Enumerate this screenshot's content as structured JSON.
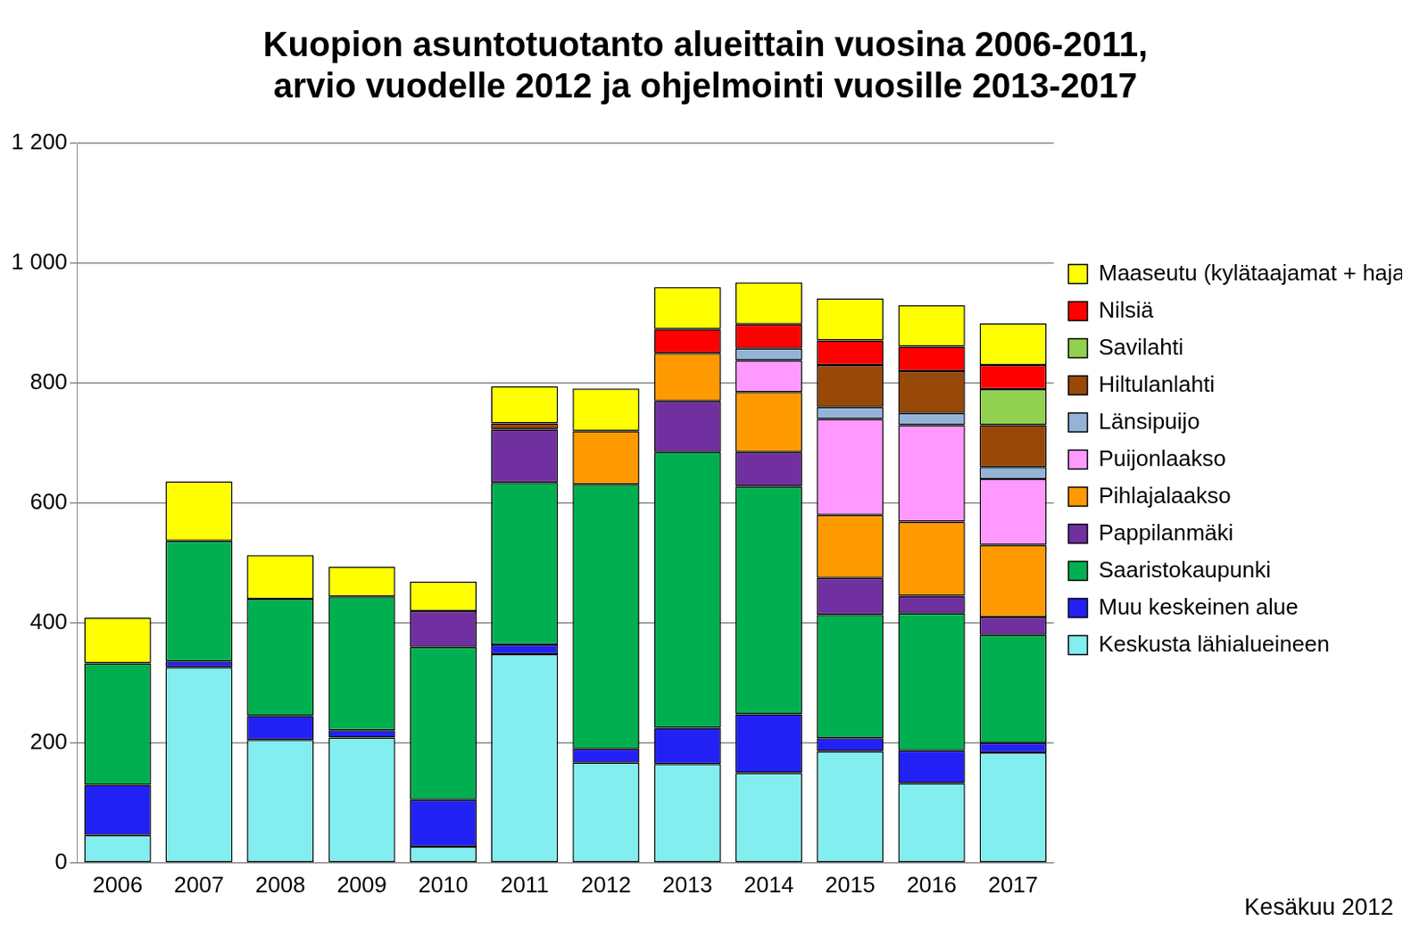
{
  "chart_data": {
    "type": "bar",
    "stacked": true,
    "title": [
      "Kuopion asuntotuotanto alueittain vuosina 2006-2011,",
      "arvio vuodelle 2012 ja ohjelmointi vuosille 2013-2017"
    ],
    "annotation": "Kesäkuu 2012",
    "categories": [
      "2006",
      "2007",
      "2008",
      "2009",
      "2010",
      "2011",
      "2012",
      "2013",
      "2014",
      "2015",
      "2016",
      "2017"
    ],
    "series": [
      {
        "name": "Keskusta lähialueineen",
        "color": "#82EEF0",
        "values": [
          46,
          326,
          205,
          209,
          27,
          348,
          167,
          165,
          150,
          186,
          133,
          184
        ]
      },
      {
        "name": "Muu keskeinen alue",
        "color": "#2121F5",
        "values": [
          84,
          10,
          40,
          12,
          78,
          16,
          23,
          60,
          98,
          22,
          54,
          16
        ]
      },
      {
        "name": "Saaristokaupunki",
        "color": "#00B050",
        "values": [
          203,
          201,
          195,
          223,
          255,
          270,
          441,
          460,
          380,
          206,
          229,
          180
        ]
      },
      {
        "name": "Pappilanmäki",
        "color": "#7030A0",
        "values": [
          null,
          null,
          null,
          null,
          60,
          89,
          null,
          85,
          57,
          61,
          29,
          30
        ]
      },
      {
        "name": "Pihlajalaakso",
        "color": "#FF9900",
        "values": [
          null,
          null,
          null,
          null,
          null,
          null,
          89,
          80,
          100,
          105,
          124,
          120
        ]
      },
      {
        "name": "Puijonlaakso",
        "color": "#FF99FF",
        "values": [
          null,
          null,
          null,
          null,
          null,
          null,
          null,
          null,
          53,
          160,
          161,
          110
        ]
      },
      {
        "name": "Länsipuijo",
        "color": "#95B3D7",
        "values": [
          null,
          null,
          null,
          null,
          null,
          null,
          null,
          null,
          20,
          20,
          20,
          20
        ]
      },
      {
        "name": "Hiltulanlahti",
        "color": "#984807",
        "values": [
          null,
          null,
          null,
          null,
          null,
          10,
          null,
          null,
          null,
          70,
          70,
          70
        ]
      },
      {
        "name": "Savilahti",
        "color": "#92D050",
        "values": [
          null,
          null,
          null,
          null,
          null,
          null,
          null,
          null,
          null,
          null,
          null,
          60
        ]
      },
      {
        "name": "Nilsiä",
        "color": "#FF0000",
        "values": [
          null,
          null,
          null,
          null,
          null,
          null,
          null,
          40,
          40,
          41,
          41,
          40
        ]
      },
      {
        "name": "Maaseutu (kylätaajamat + haja)",
        "color": "#FFFF00",
        "values": [
          76,
          99,
          73,
          50,
          49,
          62,
          71,
          70,
          70,
          70,
          69,
          70
        ]
      }
    ],
    "ylim": [
      0,
      1200
    ],
    "yticks": [
      0,
      200,
      400,
      600,
      800,
      {
        "value": 1000,
        "label": "1 000"
      },
      {
        "value": 1200,
        "label": "1 200"
      }
    ],
    "grid": true,
    "legend": "right"
  }
}
